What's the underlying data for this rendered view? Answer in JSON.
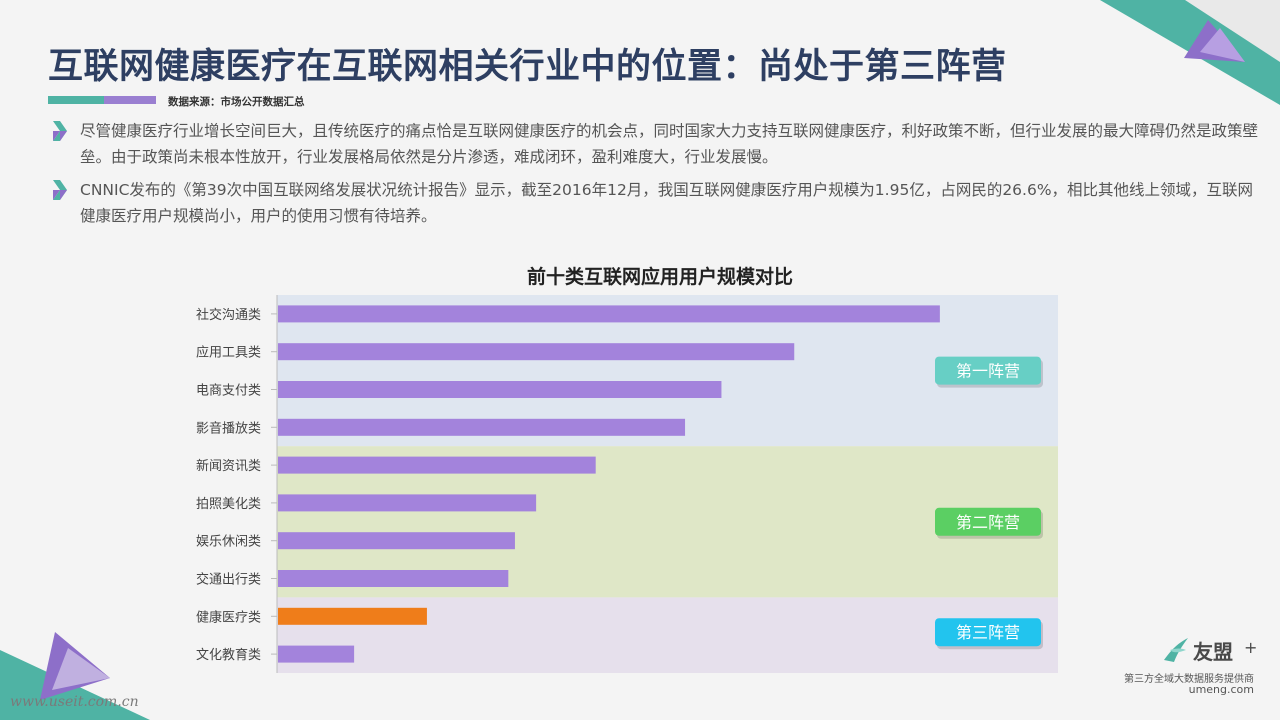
{
  "page": {
    "title": "互联网健康医疗在互联网相关行业中的位置：尚处于第三阵营",
    "source": "数据来源：市场公开数据汇总",
    "bullets": [
      "尽管健康医疗行业增长空间巨大，且传统医疗的痛点恰是互联网健康医疗的机会点，同时国家大力支持互联网健康医疗，利好政策不断，但行业发展的最大障碍仍然是政策壁垒。由于政策尚未根本性放开，行业发展格局依然是分片渗透，难成闭环，盈利难度大，行业发展慢。",
      "CNNIC发布的《第39次中国互联网络发展状况统计报告》显示，截至2016年12月，我国互联网健康医疗用户规模为1.95亿，占网民的26.6%，相比其他线上领域，互联网健康医疗用户规模尚小，用户的使用习惯有待培养。"
    ],
    "watermark": "www.useit.com.cn",
    "logo": {
      "name": "友盟",
      "plus": "+",
      "tagline": "第三方全域大数据服务提供商",
      "url": "umeng.com"
    }
  },
  "colors": {
    "title": "#2e3f62",
    "teal": "#4fb3a4",
    "purple": "#9a7fd1",
    "bar_default": "#a383dc",
    "bar_highlight": "#ef7d1a",
    "tier1_band": "#dfe6f0",
    "tier2_band": "#dfe7c7",
    "tier3_band": "#e6e0ec",
    "tier1_badge": "#67cfc5",
    "tier2_badge": "#5bcf63",
    "tier3_badge": "#22c4ee"
  },
  "chart_data": {
    "type": "bar",
    "orientation": "horizontal",
    "title": "前十类互联网应用用户规模对比",
    "categories": [
      "社交沟通类",
      "应用工具类",
      "电商支付类",
      "影音播放类",
      "新闻资讯类",
      "拍照美化类",
      "娱乐休闲类",
      "交通出行类",
      "健康医疗类",
      "文化教育类"
    ],
    "values": [
      100,
      78,
      67,
      61.5,
      48,
      39,
      35.8,
      34.8,
      22.5,
      11.5
    ],
    "highlight": "健康医疗类",
    "xlim": [
      0,
      118
    ],
    "value_labels": false,
    "tiers": [
      {
        "label": "第一阵营",
        "from": 0,
        "to": 3
      },
      {
        "label": "第二阵营",
        "from": 4,
        "to": 7
      },
      {
        "label": "第三阵营",
        "from": 8,
        "to": 9
      }
    ]
  }
}
